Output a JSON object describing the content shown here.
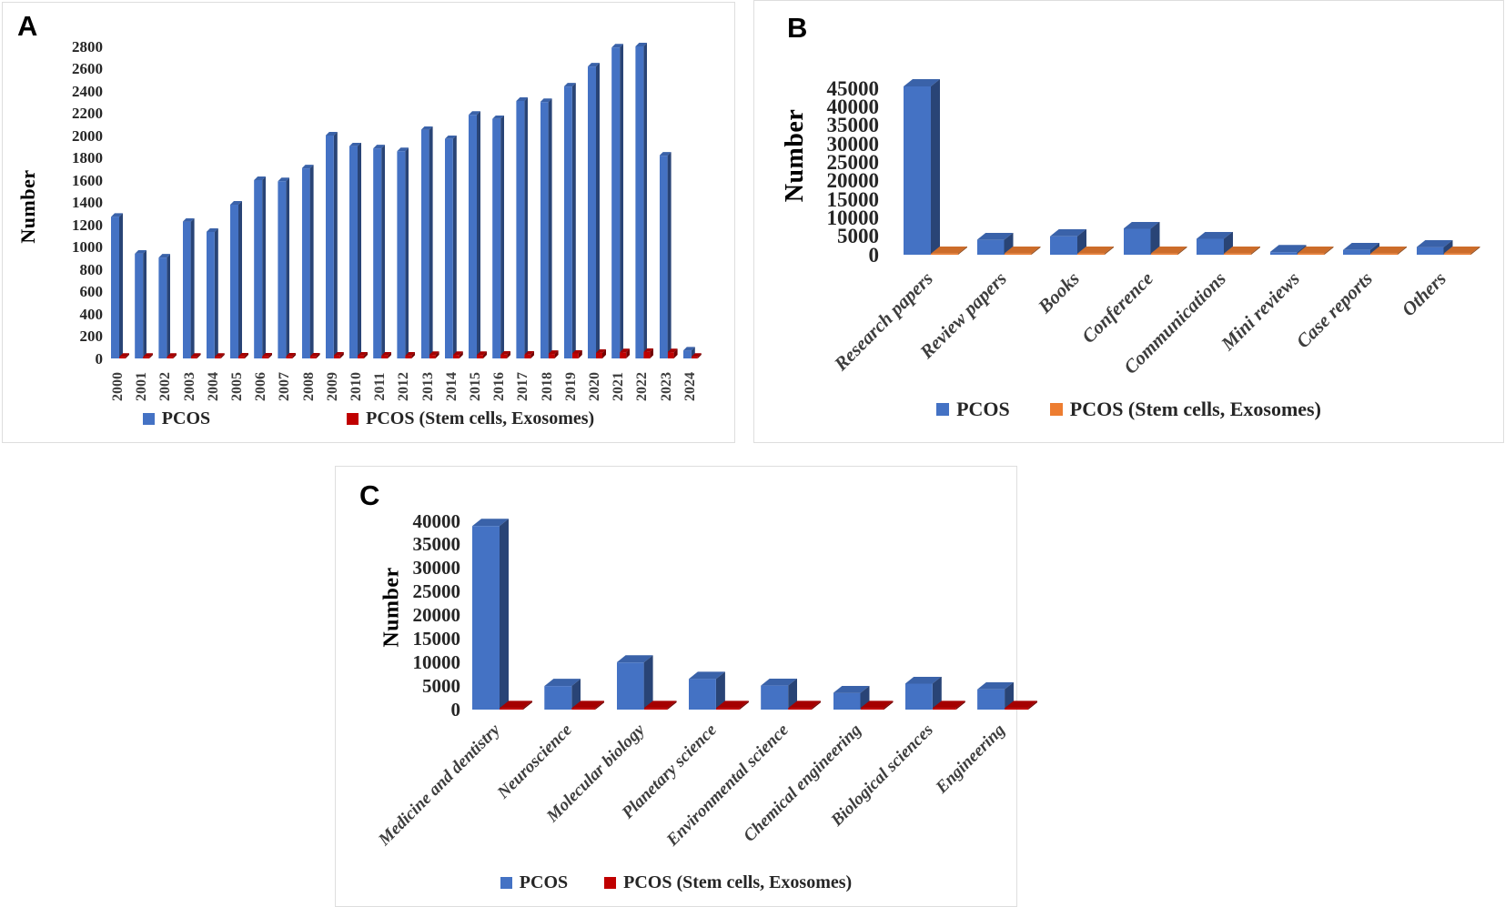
{
  "figure": {
    "panels": [
      {
        "letter": "A"
      },
      {
        "letter": "B"
      },
      {
        "letter": "C"
      }
    ],
    "colors": {
      "pcos_blue": "#4472C4",
      "stem_red": "#C00000",
      "stem_orange": "#ED7D31"
    }
  },
  "chart_data": [
    {
      "panel": "A",
      "type": "bar",
      "title": "",
      "ylabel": "Number",
      "ylim": [
        0,
        2800
      ],
      "ytick_step": 200,
      "grid": false,
      "legend_position": "bottom",
      "categories": [
        "2000",
        "2001",
        "2002",
        "2003",
        "2004",
        "2005",
        "2006",
        "2007",
        "2008",
        "2009",
        "2010",
        "2011",
        "2012",
        "2013",
        "2014",
        "2015",
        "2016",
        "2017",
        "2018",
        "2019",
        "2020",
        "2021",
        "2022",
        "2023",
        "2024"
      ],
      "series": [
        {
          "name": "PCOS",
          "color": "#4472C4",
          "values": [
            1270,
            940,
            905,
            1225,
            1135,
            1380,
            1600,
            1590,
            1705,
            2000,
            1905,
            1885,
            1860,
            2050,
            1970,
            2185,
            2150,
            2310,
            2300,
            2440,
            2620,
            2790,
            2800,
            1820,
            70
          ]
        },
        {
          "name": "PCOS (Stem cells, Exosomes)",
          "color": "#C00000",
          "values": [
            15,
            15,
            15,
            15,
            15,
            20,
            20,
            20,
            20,
            25,
            25,
            25,
            25,
            30,
            30,
            30,
            35,
            35,
            40,
            45,
            50,
            55,
            60,
            55,
            15
          ]
        }
      ]
    },
    {
      "panel": "B",
      "type": "bar",
      "title": "",
      "ylabel": "Number",
      "ylim": [
        0,
        45000
      ],
      "ytick_step": 5000,
      "grid": false,
      "legend_position": "bottom",
      "categories": [
        "Research papers",
        "Review papers",
        "Books",
        "Conference",
        "Communications",
        "Mini reviews",
        "Case reports",
        "Others"
      ],
      "series": [
        {
          "name": "PCOS",
          "color": "#4472C4",
          "values": [
            45500,
            4000,
            5000,
            7000,
            4300,
            700,
            1300,
            2000
          ]
        },
        {
          "name": "PCOS (Stem cells, Exosomes)",
          "color": "#ED7D31",
          "values": [
            300,
            300,
            300,
            300,
            300,
            300,
            300,
            300
          ]
        }
      ]
    },
    {
      "panel": "C",
      "type": "bar",
      "title": "",
      "ylabel": "Number",
      "ylim": [
        0,
        40000
      ],
      "ytick_step": 5000,
      "grid": false,
      "legend_position": "bottom",
      "categories": [
        "Medicine and dentistry",
        "Neuroscience",
        "Molecular biology",
        "Planetary science",
        "Environmental science",
        "Chemical engineering",
        "Biological sciences",
        "Engineering"
      ],
      "series": [
        {
          "name": "PCOS",
          "color": "#4472C4",
          "values": [
            39000,
            5000,
            10000,
            6500,
            5100,
            3500,
            5500,
            4300
          ]
        },
        {
          "name": "PCOS (Stem cells, Exosomes)",
          "color": "#C00000",
          "values": [
            300,
            300,
            300,
            300,
            300,
            300,
            300,
            300
          ]
        }
      ]
    }
  ]
}
